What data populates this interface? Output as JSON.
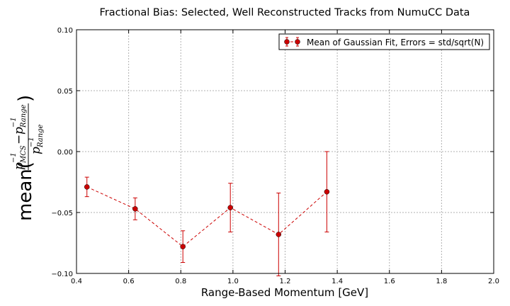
{
  "chart_data": {
    "type": "scatter",
    "title": "Fractional Bias: Selected, Well Reconstructed Tracks from NumuCC Data",
    "xlabel": "Range-Based Momentum [GeV]",
    "ylabel": {
      "prefix": "mean(",
      "suffix": ")",
      "p": "p",
      "sup": "−1",
      "sub_mcs": "MCS",
      "sub_range": "Range",
      "minus": "−"
    },
    "xlim": [
      0.4,
      2.0
    ],
    "ylim": [
      -0.1,
      0.1
    ],
    "xticks": [
      0.4,
      0.6,
      0.8,
      1.0,
      1.2,
      1.4,
      1.6,
      1.8,
      2.0
    ],
    "xtick_labels": [
      "0.4",
      "0.6",
      "0.8",
      "1.0",
      "1.2",
      "1.4",
      "1.6",
      "1.8",
      "2.0"
    ],
    "yticks": [
      -0.1,
      -0.05,
      0.0,
      0.05,
      0.1
    ],
    "ytick_labels": [
      "−0.10",
      "−0.05",
      "0.00",
      "0.05",
      "0.10"
    ],
    "grid": true,
    "legend_position": "top-right",
    "series": [
      {
        "name": "Mean of Gaussian Fit, Errors = std/sqrt(N)",
        "color": "#cc0000",
        "marker": "circle",
        "line_style": "dashed",
        "x": [
          0.44,
          0.625,
          0.808,
          0.99,
          1.175,
          1.36
        ],
        "y": [
          -0.029,
          -0.047,
          -0.078,
          -0.046,
          -0.068,
          -0.033
        ],
        "yerr": [
          0.008,
          0.009,
          0.013,
          0.02,
          0.034,
          0.033
        ]
      }
    ]
  }
}
